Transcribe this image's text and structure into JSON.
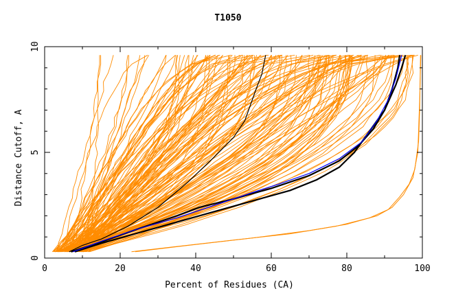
{
  "chart_data": {
    "type": "line",
    "title": "T1050",
    "xlabel": "Percent of Residues (CA)",
    "ylabel": "Distance Cutoff, A",
    "xlim": [
      0,
      100
    ],
    "ylim": [
      0,
      10
    ],
    "x_ticks": [
      "0",
      "20",
      "40",
      "60",
      "80",
      "100"
    ],
    "y_ticks": [
      "0",
      "5",
      "10"
    ],
    "grid": false,
    "legend": "none",
    "colors": {
      "background_models": "#ff8c00",
      "highlight_black": "#000000",
      "highlight_blue": "#0000ff"
    },
    "highlighted_series": [
      {
        "color": "#000000",
        "style": "thin",
        "points": [
          [
            6.5,
            0.3
          ],
          [
            10,
            0.6
          ],
          [
            15,
            0.9
          ],
          [
            22,
            1.5
          ],
          [
            30,
            2.4
          ],
          [
            38,
            3.6
          ],
          [
            45,
            4.8
          ],
          [
            50,
            5.7
          ],
          [
            53,
            6.5
          ],
          [
            56,
            8.0
          ],
          [
            57.5,
            8.7
          ],
          [
            58.5,
            9.6
          ]
        ]
      },
      {
        "color": "#000000",
        "style": "thick",
        "points": [
          [
            8,
            0.3
          ],
          [
            15,
            0.7
          ],
          [
            25,
            1.2
          ],
          [
            35,
            1.7
          ],
          [
            45,
            2.2
          ],
          [
            55,
            2.7
          ],
          [
            65,
            3.2
          ],
          [
            72,
            3.7
          ],
          [
            78,
            4.3
          ],
          [
            82,
            5.0
          ],
          [
            86,
            6.0
          ],
          [
            90,
            7.0
          ],
          [
            93,
            8.2
          ],
          [
            94.5,
            9.0
          ],
          [
            95.5,
            9.6
          ]
        ]
      },
      {
        "color": "#000000",
        "style": "thick",
        "points": [
          [
            7,
            0.3
          ],
          [
            14,
            0.7
          ],
          [
            25,
            1.4
          ],
          [
            35,
            2.0
          ],
          [
            41,
            2.4
          ],
          [
            50,
            2.8
          ],
          [
            60,
            3.3
          ],
          [
            70,
            3.9
          ],
          [
            78,
            4.6
          ],
          [
            83,
            5.3
          ],
          [
            87,
            6.1
          ],
          [
            90,
            7.0
          ],
          [
            92,
            8.0
          ],
          [
            93.5,
            9.0
          ],
          [
            94,
            9.6
          ]
        ]
      },
      {
        "color": "#0000ff",
        "style": "thin",
        "points": [
          [
            7.5,
            0.3
          ],
          [
            15,
            0.8
          ],
          [
            25,
            1.4
          ],
          [
            35,
            1.9
          ],
          [
            45,
            2.5
          ],
          [
            55,
            3.1
          ],
          [
            62,
            3.5
          ],
          [
            70,
            4.0
          ],
          [
            78,
            4.7
          ],
          [
            84,
            5.5
          ],
          [
            88,
            6.5
          ],
          [
            91,
            7.5
          ],
          [
            93,
            8.5
          ],
          [
            94.5,
            9.6
          ]
        ]
      }
    ],
    "outlier_series": [
      {
        "points": [
          [
            23,
            0.3
          ],
          [
            35,
            0.55
          ],
          [
            50,
            0.85
          ],
          [
            65,
            1.15
          ],
          [
            77,
            1.5
          ],
          [
            86,
            1.9
          ],
          [
            91,
            2.3
          ],
          [
            94,
            2.9
          ],
          [
            96.5,
            3.5
          ],
          [
            98,
            4.2
          ],
          [
            99,
            5.5
          ],
          [
            99.3,
            7.0
          ],
          [
            99.5,
            9.6
          ]
        ]
      },
      {
        "points": [
          [
            24,
            0.3
          ],
          [
            38,
            0.6
          ],
          [
            55,
            0.95
          ],
          [
            70,
            1.3
          ],
          [
            80,
            1.6
          ],
          [
            88,
            2.0
          ],
          [
            92,
            2.4
          ],
          [
            95,
            3.0
          ],
          [
            97.5,
            3.8
          ],
          [
            98.8,
            5.0
          ],
          [
            99.3,
            7.5
          ],
          [
            99.6,
            9.6
          ]
        ]
      }
    ],
    "background_model_count": 150,
    "background_model_value_range": {
      "start_x_pct": [
        2,
        12
      ],
      "y_at_start_A": 0.3,
      "y_at_end_A": 9.6,
      "end_x_pct": [
        10,
        99
      ]
    }
  }
}
